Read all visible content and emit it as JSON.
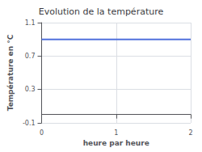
{
  "chart_data": {
    "type": "line",
    "title": "Evolution de la température",
    "xlabel": "heure par heure",
    "ylabel": "Température en °C",
    "x": [
      0,
      2
    ],
    "values": [
      0.9,
      0.9
    ],
    "xlim": [
      0,
      2
    ],
    "ylim": [
      -0.1,
      1.1
    ],
    "xticks": [
      0,
      1,
      2
    ],
    "yticks": [
      -0.1,
      0.3,
      0.7,
      1.1
    ],
    "grid": true
  }
}
